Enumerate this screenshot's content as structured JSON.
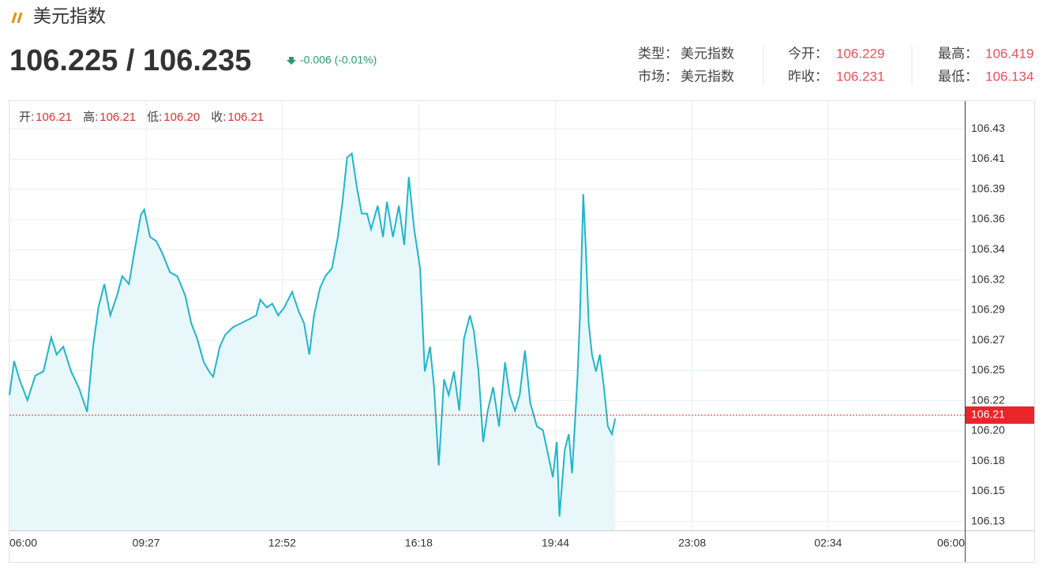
{
  "header": {
    "title": "美元指数",
    "price": "106.225 / 106.235",
    "change": "-0.006 (-0.01%)",
    "info": [
      [
        {
          "label": "类型：",
          "value": "美元指数"
        },
        {
          "label": "今开：",
          "value": "106.229"
        },
        {
          "label": "最高：",
          "value": "106.419"
        }
      ],
      [
        {
          "label": "市场：",
          "value": "美元指数"
        },
        {
          "label": "昨收：",
          "value": "106.231"
        },
        {
          "label": "最低：",
          "value": "106.134"
        }
      ]
    ]
  },
  "chart_data": {
    "type": "line",
    "ohlc": [
      {
        "label": "开:",
        "value": "106.21"
      },
      {
        "label": "高:",
        "value": "106.21"
      },
      {
        "label": "低:",
        "value": "106.20"
      },
      {
        "label": "收:",
        "value": "106.21"
      }
    ],
    "x": [
      0,
      7,
      15,
      27,
      39,
      51,
      63,
      71,
      81,
      93,
      105,
      117,
      126,
      134,
      143,
      152,
      162,
      170,
      180,
      188,
      198,
      203,
      212,
      221,
      230,
      242,
      253,
      265,
      274,
      283,
      293,
      301,
      307,
      317,
      325,
      337,
      349,
      361,
      372,
      378,
      388,
      396,
      405,
      414,
      426,
      436,
      444,
      452,
      459,
      468,
      476,
      486,
      495,
      502,
      509,
      516,
      524,
      531,
      539,
      545,
      555,
      563,
      569,
      578,
      587,
      595,
      602,
      610,
      619,
      626,
      634,
      640,
      647,
      655,
      662,
      670,
      678,
      685,
      694,
      700,
      707,
      714,
      721,
      729,
      738,
      747,
      754,
      762,
      769,
      777,
      785,
      795,
      804,
      813,
      819,
      825,
      829,
      837,
      843,
      848,
      856,
      860,
      865,
      869,
      873,
      878,
      884,
      890,
      896,
      902,
      908,
      913
    ],
    "series": [
      {
        "name": "美元指数",
        "color": "#1fb5cc",
        "fill": "#e8f8fa",
        "values": [
          106.228,
          106.254,
          106.24,
          106.224,
          106.243,
          106.246,
          106.272,
          106.259,
          106.265,
          106.246,
          106.233,
          106.215,
          106.265,
          106.295,
          106.313,
          106.289,
          106.304,
          106.319,
          106.313,
          106.337,
          106.366,
          106.37,
          106.349,
          106.346,
          106.337,
          106.322,
          106.319,
          106.304,
          106.283,
          106.271,
          106.253,
          106.246,
          106.242,
          106.265,
          106.274,
          106.28,
          106.283,
          106.286,
          106.289,
          106.301,
          106.295,
          106.298,
          106.289,
          106.295,
          106.307,
          106.292,
          106.283,
          106.259,
          106.289,
          106.31,
          106.319,
          106.325,
          106.349,
          106.376,
          106.41,
          106.413,
          106.386,
          106.367,
          106.367,
          106.355,
          106.373,
          106.349,
          106.376,
          106.349,
          106.373,
          106.343,
          106.395,
          106.355,
          106.325,
          106.246,
          106.265,
          106.234,
          106.174,
          106.24,
          106.228,
          106.246,
          106.216,
          106.271,
          106.289,
          106.277,
          106.246,
          106.192,
          106.216,
          106.234,
          106.204,
          106.253,
          106.228,
          106.216,
          106.228,
          106.262,
          106.222,
          106.204,
          106.201,
          106.18,
          106.165,
          106.192,
          106.135,
          106.186,
          106.198,
          106.168,
          106.24,
          106.289,
          106.382,
          106.337,
          106.283,
          106.259,
          106.246,
          106.259,
          106.234,
          106.204,
          106.198,
          106.21
        ]
      }
    ],
    "xlim": [
      0,
      1440
    ],
    "xticks": [
      {
        "value": 0,
        "label": "06:00"
      },
      {
        "value": 206,
        "label": "09:27"
      },
      {
        "value": 411,
        "label": "12:52"
      },
      {
        "value": 617,
        "label": "16:18"
      },
      {
        "value": 823,
        "label": "19:44"
      },
      {
        "value": 1029,
        "label": "23:08"
      },
      {
        "value": 1234,
        "label": "02:34"
      },
      {
        "value": 1440,
        "label": "06:00"
      }
    ],
    "ylim": [
      106.1243,
      106.4532
    ],
    "yticks": [
      {
        "value": 106.131,
        "label": "106.13"
      },
      {
        "value": 106.1542,
        "label": "106.15"
      },
      {
        "value": 106.1773,
        "label": "106.18"
      },
      {
        "value": 106.2005,
        "label": "106.20"
      },
      {
        "value": 106.2236,
        "label": "106.22"
      },
      {
        "value": 106.2468,
        "label": "106.25"
      },
      {
        "value": 106.2699,
        "label": "106.27"
      },
      {
        "value": 106.2931,
        "label": "106.29"
      },
      {
        "value": 106.3162,
        "label": "106.32"
      },
      {
        "value": 106.3394,
        "label": "106.34"
      },
      {
        "value": 106.3625,
        "label": "106.36"
      },
      {
        "value": 106.3857,
        "label": "106.39"
      },
      {
        "value": 106.4088,
        "label": "106.41"
      },
      {
        "value": 106.432,
        "label": "106.43"
      }
    ],
    "last_price": {
      "value": 106.2126,
      "label": "106.21",
      "color": "#e8262a"
    },
    "grid": true
  }
}
